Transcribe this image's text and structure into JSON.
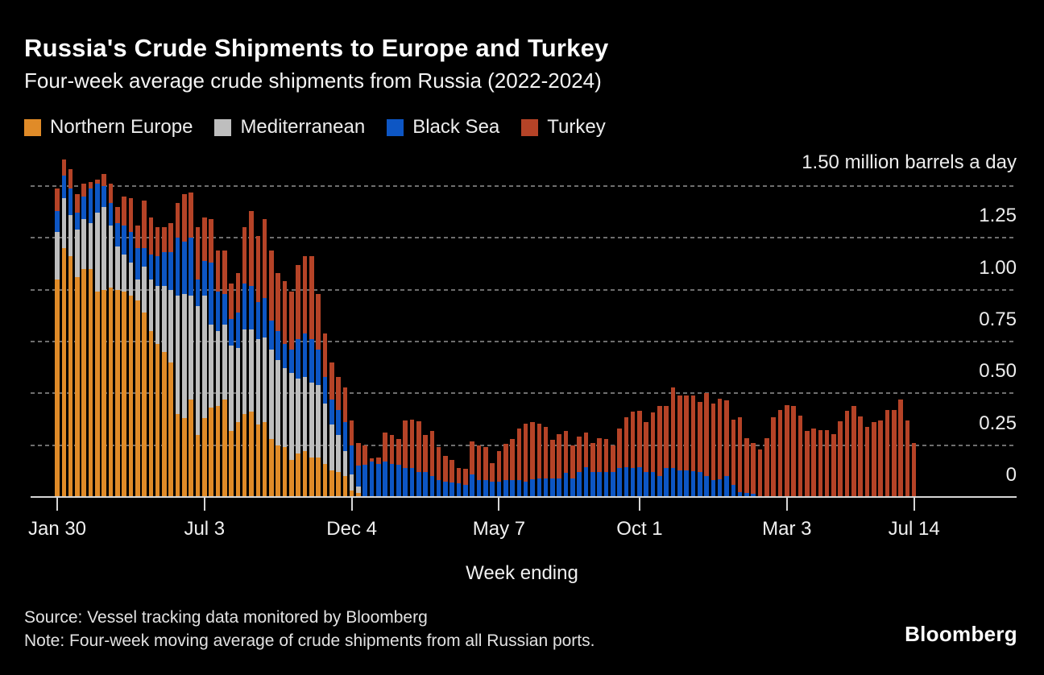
{
  "header": {
    "title": "Russia's Crude Shipments to Europe and Turkey",
    "subtitle": "Four-week average crude shipments from Russia (2022-2024)"
  },
  "legend": [
    {
      "label": "Northern Europe",
      "color": "#E08B28"
    },
    {
      "label": "Mediterranean",
      "color": "#BEBEBE"
    },
    {
      "label": "Black Sea",
      "color": "#0D56C4"
    },
    {
      "label": "Turkey",
      "color": "#B54327"
    }
  ],
  "y_axis": {
    "unit_label": "1.50 million barrels a day",
    "ticks": [
      "1.25",
      "1.00",
      "0.75",
      "0.50",
      "0.25",
      "0"
    ]
  },
  "x_axis": {
    "label": "Week ending",
    "ticks": [
      {
        "label": "Jan 30",
        "week_index": 0
      },
      {
        "label": "Jul 3",
        "week_index": 22
      },
      {
        "label": "Dec 4",
        "week_index": 44
      },
      {
        "label": "May 7",
        "week_index": 66
      },
      {
        "label": "Oct 1",
        "week_index": 87
      },
      {
        "label": "Mar 3",
        "week_index": 109
      },
      {
        "label": "Jul 14",
        "week_index": 128
      }
    ]
  },
  "footer": {
    "source": "Source: Vessel tracking data monitored by Bloomberg",
    "note": "Note: Four-week moving average of crude shipments from all Russian ports.",
    "logo": "Bloomberg"
  },
  "chart_data": {
    "type": "bar",
    "stacked": true,
    "title": "Russia's Crude Shipments to Europe and Turkey",
    "subtitle": "Four-week average crude shipments from Russia (2022-2024)",
    "xlabel": "Week ending",
    "ylabel": "million barrels a day",
    "ylim": [
      0,
      1.5
    ],
    "y_tick_step": 0.25,
    "grid": "dashed-horizontal",
    "legend_position": "top",
    "background": "#000000",
    "categories": [
      "2022-01-30",
      "2022-02-06",
      "2022-02-13",
      "2022-02-20",
      "2022-02-27",
      "2022-03-06",
      "2022-03-13",
      "2022-03-20",
      "2022-03-27",
      "2022-04-03",
      "2022-04-10",
      "2022-04-17",
      "2022-04-24",
      "2022-05-01",
      "2022-05-08",
      "2022-05-15",
      "2022-05-22",
      "2022-05-29",
      "2022-06-05",
      "2022-06-12",
      "2022-06-19",
      "2022-06-26",
      "2022-07-03",
      "2022-07-10",
      "2022-07-17",
      "2022-07-24",
      "2022-07-31",
      "2022-08-07",
      "2022-08-14",
      "2022-08-21",
      "2022-08-28",
      "2022-09-04",
      "2022-09-11",
      "2022-09-18",
      "2022-09-25",
      "2022-10-02",
      "2022-10-09",
      "2022-10-16",
      "2022-10-23",
      "2022-10-30",
      "2022-11-06",
      "2022-11-13",
      "2022-11-20",
      "2022-11-27",
      "2022-12-04",
      "2022-12-11",
      "2022-12-18",
      "2022-12-25",
      "2023-01-01",
      "2023-01-08",
      "2023-01-15",
      "2023-01-22",
      "2023-01-29",
      "2023-02-05",
      "2023-02-12",
      "2023-02-19",
      "2023-02-26",
      "2023-03-05",
      "2023-03-12",
      "2023-03-19",
      "2023-03-26",
      "2023-04-02",
      "2023-04-09",
      "2023-04-16",
      "2023-04-23",
      "2023-04-30",
      "2023-05-07",
      "2023-05-14",
      "2023-05-21",
      "2023-05-28",
      "2023-06-04",
      "2023-06-11",
      "2023-06-18",
      "2023-06-25",
      "2023-07-02",
      "2023-07-09",
      "2023-07-16",
      "2023-07-23",
      "2023-07-30",
      "2023-08-06",
      "2023-08-13",
      "2023-08-20",
      "2023-08-27",
      "2023-09-03",
      "2023-09-10",
      "2023-09-17",
      "2023-09-24",
      "2023-10-01",
      "2023-10-08",
      "2023-10-15",
      "2023-10-22",
      "2023-10-29",
      "2023-11-05",
      "2023-11-12",
      "2023-11-19",
      "2023-11-26",
      "2023-12-03",
      "2023-12-10",
      "2023-12-17",
      "2023-12-24",
      "2023-12-31",
      "2024-01-07",
      "2024-01-14",
      "2024-01-21",
      "2024-01-28",
      "2024-02-04",
      "2024-02-11",
      "2024-02-18",
      "2024-02-25",
      "2024-03-03",
      "2024-03-10",
      "2024-03-17",
      "2024-03-24",
      "2024-03-31",
      "2024-04-07",
      "2024-04-14",
      "2024-04-21",
      "2024-04-28",
      "2024-05-05",
      "2024-05-12",
      "2024-05-19",
      "2024-05-26",
      "2024-06-02",
      "2024-06-09",
      "2024-06-16",
      "2024-06-23",
      "2024-06-30",
      "2024-07-07",
      "2024-07-14"
    ],
    "series": [
      {
        "name": "Northern Europe",
        "color": "#E08B28",
        "values": [
          1.05,
          1.2,
          1.16,
          1.06,
          1.1,
          1.1,
          0.99,
          1.0,
          1.01,
          1.0,
          0.99,
          0.97,
          0.95,
          0.89,
          0.8,
          0.74,
          0.7,
          0.65,
          0.4,
          0.38,
          0.47,
          0.3,
          0.38,
          0.43,
          0.44,
          0.47,
          0.32,
          0.36,
          0.4,
          0.41,
          0.35,
          0.36,
          0.28,
          0.25,
          0.24,
          0.18,
          0.21,
          0.22,
          0.19,
          0.19,
          0.16,
          0.13,
          0.12,
          0.1,
          0.03,
          0.02,
          0,
          0,
          0,
          0,
          0,
          0,
          0,
          0,
          0,
          0,
          0,
          0,
          0,
          0,
          0,
          0,
          0,
          0,
          0,
          0,
          0,
          0,
          0,
          0,
          0,
          0,
          0,
          0,
          0,
          0,
          0,
          0,
          0,
          0,
          0,
          0,
          0,
          0,
          0,
          0,
          0,
          0,
          0,
          0,
          0,
          0,
          0,
          0,
          0,
          0,
          0,
          0,
          0,
          0,
          0,
          0,
          0,
          0,
          0,
          0,
          0,
          0,
          0,
          0,
          0,
          0,
          0,
          0,
          0,
          0,
          0,
          0,
          0,
          0,
          0,
          0,
          0,
          0,
          0,
          0,
          0,
          0,
          0
        ]
      },
      {
        "name": "Mediterranean",
        "color": "#BEBEBE",
        "values": [
          0.23,
          0.24,
          0.2,
          0.23,
          0.24,
          0.22,
          0.38,
          0.4,
          0.3,
          0.21,
          0.18,
          0.16,
          0.1,
          0.22,
          0.25,
          0.28,
          0.32,
          0.35,
          0.57,
          0.6,
          0.5,
          0.62,
          0.59,
          0.4,
          0.36,
          0.36,
          0.41,
          0.36,
          0.41,
          0.4,
          0.41,
          0.41,
          0.43,
          0.41,
          0.38,
          0.42,
          0.36,
          0.36,
          0.36,
          0.35,
          0.29,
          0.22,
          0.18,
          0.12,
          0.08,
          0.03,
          0,
          0,
          0,
          0,
          0,
          0,
          0,
          0,
          0,
          0,
          0,
          0,
          0,
          0,
          0,
          0,
          0,
          0,
          0,
          0,
          0,
          0,
          0,
          0,
          0,
          0,
          0,
          0,
          0,
          0,
          0,
          0,
          0,
          0,
          0,
          0,
          0,
          0,
          0,
          0,
          0,
          0,
          0,
          0,
          0,
          0,
          0,
          0,
          0,
          0,
          0,
          0,
          0,
          0,
          0,
          0,
          0,
          0,
          0,
          0,
          0,
          0,
          0,
          0,
          0,
          0,
          0,
          0,
          0,
          0,
          0,
          0,
          0,
          0,
          0,
          0,
          0,
          0,
          0,
          0,
          0,
          0,
          0
        ]
      },
      {
        "name": "Black Sea",
        "color": "#0D56C4",
        "values": [
          0.1,
          0.11,
          0.13,
          0.08,
          0.11,
          0.17,
          0.14,
          0.1,
          0.11,
          0.11,
          0.14,
          0.15,
          0.15,
          0.09,
          0.12,
          0.14,
          0.16,
          0.18,
          0.28,
          0.25,
          0.28,
          0.13,
          0.17,
          0.3,
          0.19,
          0.15,
          0.13,
          0.17,
          0.22,
          0.21,
          0.18,
          0.19,
          0.14,
          0.14,
          0.12,
          0.11,
          0.19,
          0.21,
          0.21,
          0.17,
          0.13,
          0.12,
          0.12,
          0.14,
          0.14,
          0.1,
          0.155,
          0.17,
          0.16,
          0.17,
          0.16,
          0.155,
          0.14,
          0.14,
          0.12,
          0.12,
          0.1,
          0.08,
          0.075,
          0.07,
          0.065,
          0.06,
          0.11,
          0.08,
          0.08,
          0.075,
          0.075,
          0.08,
          0.08,
          0.08,
          0.073,
          0.086,
          0.09,
          0.09,
          0.09,
          0.09,
          0.115,
          0.09,
          0.12,
          0.145,
          0.12,
          0.12,
          0.12,
          0.12,
          0.14,
          0.145,
          0.14,
          0.145,
          0.12,
          0.12,
          0.1,
          0.14,
          0.14,
          0.13,
          0.13,
          0.125,
          0.12,
          0.1,
          0.08,
          0.084,
          0.1,
          0.058,
          0.022,
          0.018,
          0.015,
          0,
          0,
          0,
          0,
          0,
          0,
          0,
          0,
          0,
          0,
          0,
          0,
          0,
          0,
          0,
          0,
          0,
          0,
          0,
          0,
          0,
          0,
          0,
          0
        ]
      },
      {
        "name": "Turkey",
        "color": "#B54327",
        "values": [
          0.11,
          0.08,
          0.09,
          0.09,
          0.06,
          0.03,
          0.02,
          0.06,
          0.09,
          0.08,
          0.14,
          0.16,
          0.11,
          0.23,
          0.18,
          0.14,
          0.12,
          0.14,
          0.17,
          0.23,
          0.22,
          0.25,
          0.21,
          0.21,
          0.2,
          0.21,
          0.17,
          0.19,
          0.27,
          0.36,
          0.32,
          0.38,
          0.34,
          0.28,
          0.3,
          0.28,
          0.36,
          0.37,
          0.4,
          0.27,
          0.21,
          0.18,
          0.16,
          0.17,
          0.12,
          0.11,
          0.095,
          0.015,
          0.03,
          0.14,
          0.14,
          0.125,
          0.23,
          0.235,
          0.245,
          0.18,
          0.22,
          0.16,
          0.125,
          0.11,
          0.075,
          0.075,
          0.16,
          0.17,
          0.16,
          0.09,
          0.145,
          0.175,
          0.2,
          0.25,
          0.28,
          0.274,
          0.265,
          0.25,
          0.186,
          0.215,
          0.205,
          0.16,
          0.17,
          0.165,
          0.14,
          0.165,
          0.16,
          0.127,
          0.19,
          0.24,
          0.27,
          0.27,
          0.24,
          0.287,
          0.34,
          0.3,
          0.39,
          0.36,
          0.36,
          0.365,
          0.34,
          0.4,
          0.37,
          0.39,
          0.365,
          0.315,
          0.364,
          0.265,
          0.245,
          0.23,
          0.283,
          0.386,
          0.418,
          0.444,
          0.441,
          0.394,
          0.319,
          0.329,
          0.321,
          0.321,
          0.302,
          0.364,
          0.415,
          0.44,
          0.39,
          0.34,
          0.36,
          0.37,
          0.42,
          0.42,
          0.47,
          0.37,
          0.26
        ]
      }
    ]
  }
}
